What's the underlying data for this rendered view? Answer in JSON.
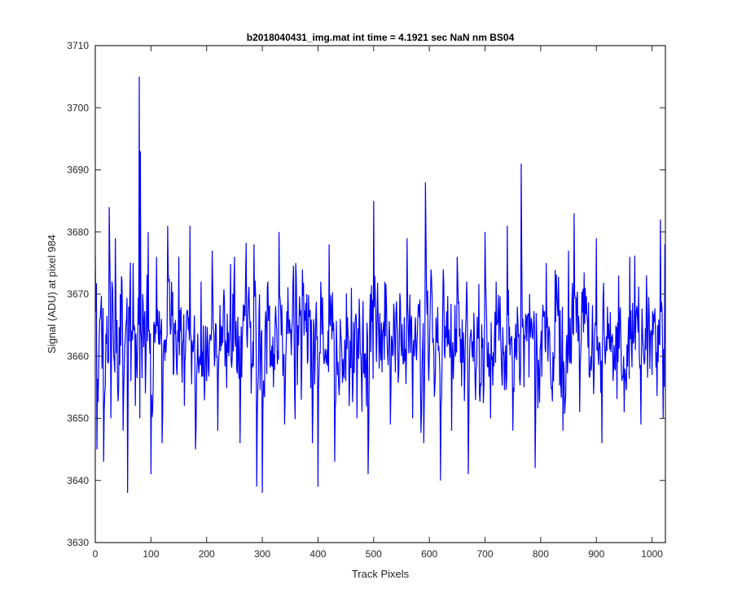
{
  "chart_data": {
    "type": "line",
    "title": "b2018040431_img.mat int time = 4.1921 sec  NaN nm BS04",
    "xlabel": "Track Pixels",
    "ylabel": "Signal (ADU) at pixel 984",
    "xlim": [
      0,
      1024
    ],
    "ylim": [
      3630,
      3710
    ],
    "xticks": [
      "0",
      "100",
      "200",
      "300",
      "400",
      "500",
      "600",
      "700",
      "800",
      "900",
      "1000"
    ],
    "yticks": [
      "3630",
      "3640",
      "3650",
      "3660",
      "3670",
      "3680",
      "3690",
      "3700",
      "3710"
    ],
    "grid": false,
    "series": [
      {
        "color": "#0000ff",
        "n_points": 1024,
        "baseline": 3662,
        "typical_range": [
          3645,
          3680
        ],
        "x": [
          0,
          3,
          6,
          10,
          15,
          20,
          25,
          28,
          30,
          33,
          36,
          40,
          45,
          50,
          55,
          58,
          60,
          64,
          68,
          72,
          76,
          79,
          80,
          81,
          82,
          85,
          90,
          95,
          100,
          110,
          120,
          130,
          140,
          150,
          160,
          170,
          180,
          190,
          200,
          210,
          220,
          230,
          240,
          250,
          260,
          270,
          280,
          285,
          290,
          294,
          300,
          310,
          320,
          330,
          340,
          350,
          360,
          370,
          380,
          390,
          400,
          405,
          410,
          420,
          430,
          440,
          450,
          460,
          470,
          480,
          490,
          500,
          510,
          520,
          530,
          540,
          550,
          560,
          570,
          580,
          590,
          593,
          600,
          610,
          620,
          625,
          630,
          640,
          650,
          660,
          670,
          680,
          690,
          700,
          710,
          720,
          730,
          740,
          750,
          760,
          765,
          770,
          780,
          790,
          800,
          810,
          820,
          830,
          840,
          850,
          860,
          870,
          880,
          890,
          900,
          910,
          920,
          930,
          940,
          950,
          960,
          970,
          980,
          990,
          1000,
          1010,
          1015,
          1020,
          1023
        ],
        "y": [
          3676,
          3645,
          3658,
          3668,
          3643,
          3662,
          3684,
          3650,
          3672,
          3660,
          3679,
          3655,
          3670,
          3648,
          3665,
          3638,
          3668,
          3656,
          3675,
          3652,
          3661,
          3705,
          3650,
          3693,
          3664,
          3670,
          3654,
          3680,
          3641,
          3676,
          3646,
          3681,
          3657,
          3676,
          3652,
          3681,
          3645,
          3672,
          3656,
          3677,
          3648,
          3668,
          3660,
          3676,
          3646,
          3673,
          3654,
          3678,
          3639,
          3667,
          3638,
          3672,
          3655,
          3680,
          3649,
          3664,
          3675,
          3653,
          3670,
          3646,
          3639,
          3672,
          3660,
          3678,
          3643,
          3666,
          3656,
          3671,
          3650,
          3664,
          3641,
          3685,
          3658,
          3672,
          3649,
          3667,
          3660,
          3679,
          3650,
          3668,
          3646,
          3688,
          3660,
          3655,
          3640,
          3674,
          3663,
          3648,
          3676,
          3659,
          3641,
          3667,
          3654,
          3680,
          3650,
          3672,
          3657,
          3681,
          3648,
          3663,
          3691,
          3655,
          3670,
          3642,
          3662,
          3675,
          3655,
          3668,
          3648,
          3677,
          3683,
          3651,
          3671,
          3660,
          3679,
          3646,
          3668,
          3656,
          3673,
          3651,
          3676,
          3661,
          3649,
          3673,
          3657,
          3665,
          3682,
          3650,
          3678
        ]
      }
    ]
  }
}
